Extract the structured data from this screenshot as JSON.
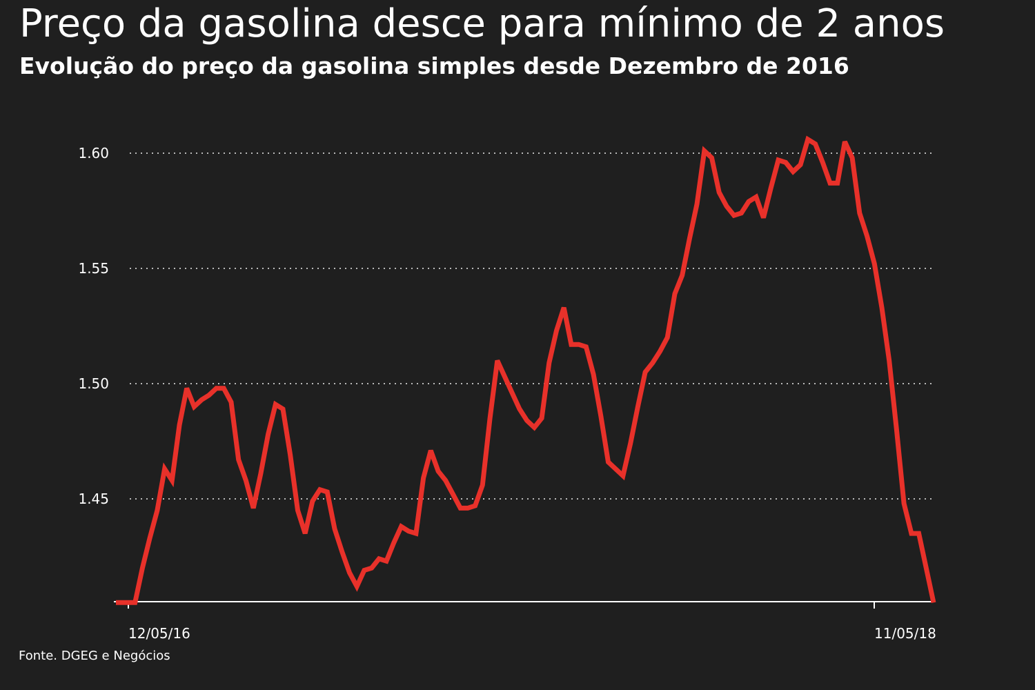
{
  "title": "Preço da gasolina desce para mínimo de 2 anos",
  "subtitle": "Evolução do preço da gasolina simples desde Dezembro de 2016",
  "source": "Fonte. DGEG e Negócios",
  "colors": {
    "background": "#1f1f1f",
    "line": "#e8312a",
    "text": "#ffffff",
    "grid": "#bbbbbb"
  },
  "chart_data": {
    "type": "line",
    "xlabel": "",
    "ylabel": "",
    "ylim": [
      1.405,
      1.61
    ],
    "yticks": [
      1.45,
      1.5,
      1.55,
      1.6
    ],
    "ytick_labels": [
      "1.45",
      "1.50",
      "1.55",
      "1.60"
    ],
    "grid": "horizontal-dotted",
    "legend": "none",
    "x_tick_labels": [
      {
        "label": "12/05/16",
        "index": 0
      },
      {
        "label": "11/05/18",
        "index": 104
      }
    ],
    "series": [
      {
        "values": [
          1.405,
          1.405,
          1.42,
          1.433,
          1.445,
          1.463,
          1.458,
          1.482,
          1.498,
          1.49,
          1.493,
          1.495,
          1.498,
          1.498,
          1.492,
          1.467,
          1.458,
          1.446,
          1.461,
          1.478,
          1.491,
          1.489,
          1.469,
          1.445,
          1.435,
          1.449,
          1.454,
          1.453,
          1.437,
          1.427,
          1.418,
          1.412,
          1.419,
          1.42,
          1.424,
          1.423,
          1.431,
          1.438,
          1.436,
          1.435,
          1.459,
          1.471,
          1.462,
          1.458,
          1.452,
          1.446,
          1.446,
          1.447,
          1.456,
          1.485,
          1.51,
          1.503,
          1.496,
          1.489,
          1.484,
          1.481,
          1.485,
          1.509,
          1.523,
          1.533,
          1.517,
          1.517,
          1.516,
          1.504,
          1.486,
          1.466,
          1.463,
          1.46,
          1.474,
          1.49,
          1.505,
          1.509,
          1.514,
          1.52,
          1.539,
          1.547,
          1.563,
          1.578,
          1.601,
          1.598,
          1.583,
          1.577,
          1.573,
          1.574,
          1.579,
          1.581,
          1.572,
          1.585,
          1.597,
          1.596,
          1.592,
          1.595,
          1.606,
          1.604,
          1.596,
          1.587,
          1.587,
          1.605,
          1.598,
          1.574,
          1.564,
          1.552,
          1.533,
          1.51,
          1.48,
          1.448,
          1.435,
          1.435,
          1.42,
          1.405
        ]
      }
    ]
  }
}
